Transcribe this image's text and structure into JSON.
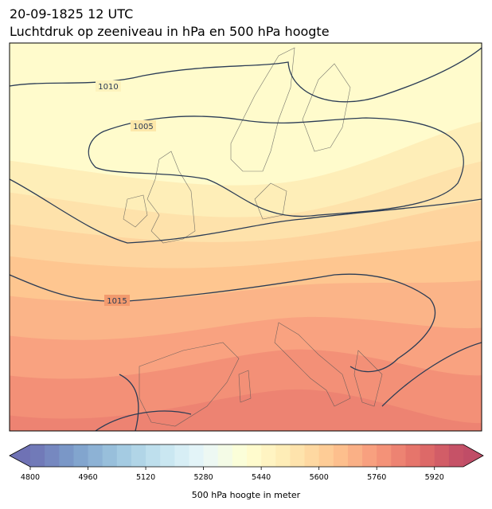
{
  "header": {
    "title": "20-09-1825 12 UTC",
    "subtitle": "Luchtdruk op zeeniveau in hPa en 500 hPa hoogte"
  },
  "map": {
    "contour_labels": [
      "1010",
      "1005",
      "1015"
    ]
  },
  "colorbar": {
    "label": "500 hPa hoogte in meter",
    "lim": [
      4800,
      6000
    ],
    "bin": 40,
    "ticks": [
      4800,
      4960,
      5120,
      5280,
      5440,
      5600,
      5760,
      5920
    ]
  }
}
